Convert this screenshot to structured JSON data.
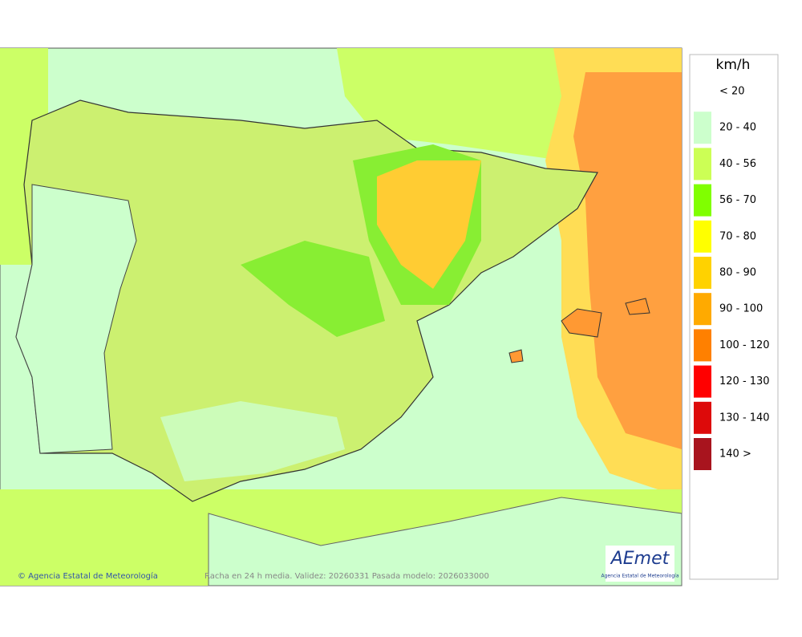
{
  "legend": {
    "title": "km/h",
    "items": [
      {
        "label": "< 20",
        "color": null
      },
      {
        "label": "20 - 40",
        "color": "#ccffcc"
      },
      {
        "label": "40 - 56",
        "color": "#ccff55"
      },
      {
        "label": "56 - 70",
        "color": "#80ff00"
      },
      {
        "label": "70 - 80",
        "color": "#ffff00"
      },
      {
        "label": "80 - 90",
        "color": "#ffd200"
      },
      {
        "label": "90 - 100",
        "color": "#ffaa00"
      },
      {
        "label": "100 - 120",
        "color": "#ff8000"
      },
      {
        "label": "120 - 130",
        "color": "#ff0000"
      },
      {
        "label": "130 - 140",
        "color": "#dd0a0a"
      },
      {
        "label": "140 >",
        "color": "#a8141e"
      }
    ]
  },
  "footer": {
    "credit": "© Agencia Estatal de Meteorología",
    "caption": "Racha en 24 h media. Validez: 20260331 Pasada modelo: 2026033000"
  },
  "logo": {
    "name": "AEmet",
    "subtitle": "Agencia Estatal de Meteorología"
  }
}
